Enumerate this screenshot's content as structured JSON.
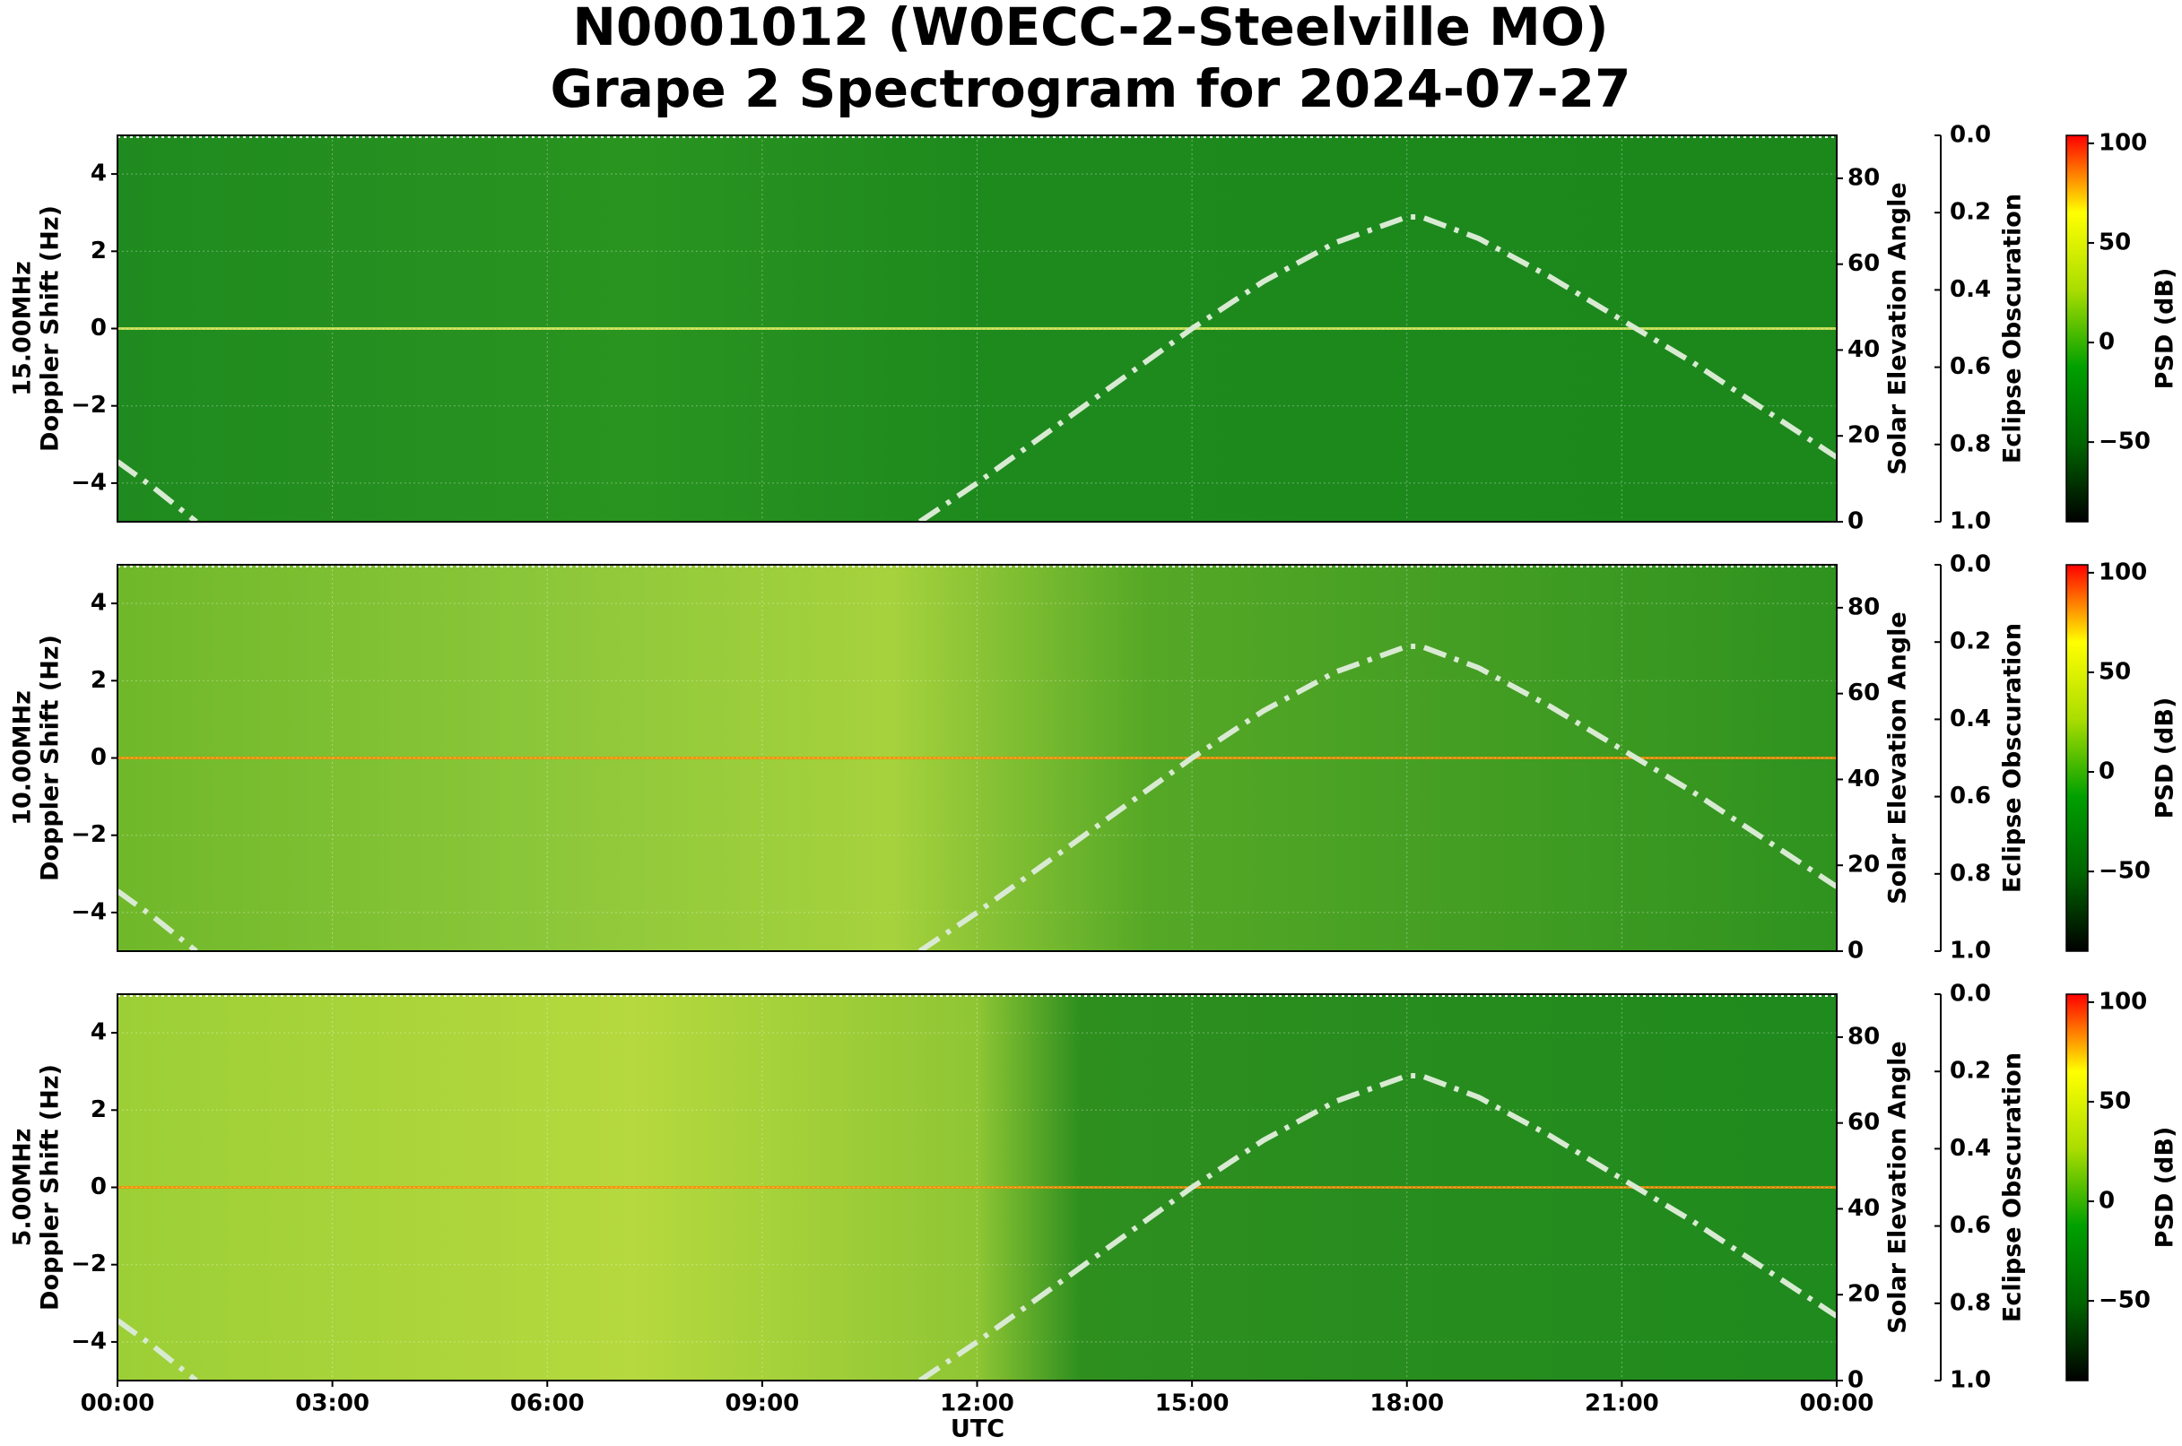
{
  "title": "N0001012 (W0ECC-2-Steelville MO)",
  "subtitle": "Grape 2 Spectrogram for 2024-07-27",
  "xlabel": "UTC",
  "xlim": [
    0,
    24
  ],
  "xticks": [
    {
      "value": 0,
      "label": "00:00"
    },
    {
      "value": 3,
      "label": "03:00"
    },
    {
      "value": 6,
      "label": "06:00"
    },
    {
      "value": 9,
      "label": "09:00"
    },
    {
      "value": 12,
      "label": "12:00"
    },
    {
      "value": 15,
      "label": "15:00"
    },
    {
      "value": 18,
      "label": "18:00"
    },
    {
      "value": 21,
      "label": "21:00"
    },
    {
      "value": 24,
      "label": "00:00"
    }
  ],
  "chart_data": [
    {
      "type": "spectrogram",
      "frequency_label": "15.00MHz",
      "ylabel": "Doppler Shift (Hz)",
      "ylim": [
        -5,
        5
      ],
      "yticks": [
        {
          "value": -4,
          "label": "−4"
        },
        {
          "value": -2,
          "label": "−2"
        },
        0,
        2,
        4
      ],
      "y2label": "Solar Elevation Angle",
      "y2lim": [
        0,
        90
      ],
      "y2ticks": [
        0,
        20,
        40,
        60,
        80
      ],
      "y3label": "Eclipse Obscuration",
      "y3lim": [
        1,
        0
      ],
      "y3ticks": [
        {
          "value": 0,
          "label": "0.0"
        },
        {
          "value": 0.2,
          "label": "0.2"
        },
        {
          "value": 0.4,
          "label": "0.4"
        },
        {
          "value": 0.6,
          "label": "0.6"
        },
        {
          "value": 0.8,
          "label": "0.8"
        },
        {
          "value": 1,
          "label": "1.0"
        }
      ],
      "colorbar_label": "PSD (dB)",
      "clim": [
        -90,
        104
      ],
      "cticks": [
        {
          "value": -50,
          "label": "−50"
        },
        0,
        50,
        100
      ],
      "colormap": [
        "#000000",
        "#006400",
        "#00a000",
        "#aadd00",
        "#ffff00",
        "#ff0000"
      ],
      "grid": true,
      "solar_elevation": {
        "axis": "y2",
        "color": "#d9ead3",
        "x": [
          0,
          0.5,
          1.1,
          6,
          11.2,
          12,
          13,
          14,
          15,
          16,
          17,
          18,
          18.2,
          19,
          20,
          21,
          22,
          23,
          24
        ],
        "values": [
          14,
          8,
          0,
          null,
          0,
          9,
          21,
          33,
          45,
          56,
          65,
          71,
          71,
          66,
          57,
          47,
          37,
          26,
          15
        ]
      }
    },
    {
      "type": "spectrogram",
      "frequency_label": "10.00MHz",
      "ylabel": "Doppler Shift (Hz)",
      "ylim": [
        -5,
        5
      ],
      "yticks": [
        {
          "value": -4,
          "label": "−4"
        },
        {
          "value": -2,
          "label": "−2"
        },
        0,
        2,
        4
      ],
      "y2label": "Solar Elevation Angle",
      "y2lim": [
        0,
        90
      ],
      "y2ticks": [
        0,
        20,
        40,
        60,
        80
      ],
      "y3label": "Eclipse Obscuration",
      "y3lim": [
        1,
        0
      ],
      "y3ticks": [
        {
          "value": 0,
          "label": "0.0"
        },
        {
          "value": 0.2,
          "label": "0.2"
        },
        {
          "value": 0.4,
          "label": "0.4"
        },
        {
          "value": 0.6,
          "label": "0.6"
        },
        {
          "value": 0.8,
          "label": "0.8"
        },
        {
          "value": 1,
          "label": "1.0"
        }
      ],
      "colorbar_label": "PSD (dB)",
      "clim": [
        -90,
        104
      ],
      "cticks": [
        {
          "value": -50,
          "label": "−50"
        },
        0,
        50,
        100
      ],
      "colormap": [
        "#000000",
        "#006400",
        "#00a000",
        "#aadd00",
        "#ffff00",
        "#ff0000"
      ],
      "grid": true,
      "solar_elevation": {
        "axis": "y2",
        "color": "#d9ead3",
        "x": [
          0,
          0.5,
          1.1,
          6,
          11.2,
          12,
          13,
          14,
          15,
          16,
          17,
          18,
          18.2,
          19,
          20,
          21,
          22,
          23,
          24
        ],
        "values": [
          14,
          8,
          0,
          null,
          0,
          9,
          21,
          33,
          45,
          56,
          65,
          71,
          71,
          66,
          57,
          47,
          37,
          26,
          15
        ]
      }
    },
    {
      "type": "spectrogram",
      "frequency_label": "5.00MHz",
      "ylabel": "Doppler Shift (Hz)",
      "ylim": [
        -5,
        5
      ],
      "yticks": [
        {
          "value": -4,
          "label": "−4"
        },
        {
          "value": -2,
          "label": "−2"
        },
        0,
        2,
        4
      ],
      "y2label": "Solar Elevation Angle",
      "y2lim": [
        0,
        90
      ],
      "y2ticks": [
        0,
        20,
        40,
        60,
        80
      ],
      "y3label": "Eclipse Obscuration",
      "y3lim": [
        1,
        0
      ],
      "y3ticks": [
        {
          "value": 0,
          "label": "0.0"
        },
        {
          "value": 0.2,
          "label": "0.2"
        },
        {
          "value": 0.4,
          "label": "0.4"
        },
        {
          "value": 0.6,
          "label": "0.6"
        },
        {
          "value": 0.8,
          "label": "0.8"
        },
        {
          "value": 1,
          "label": "1.0"
        }
      ],
      "colorbar_label": "PSD (dB)",
      "clim": [
        -90,
        104
      ],
      "cticks": [
        {
          "value": -50,
          "label": "−50"
        },
        0,
        50,
        100
      ],
      "colormap": [
        "#000000",
        "#006400",
        "#00a000",
        "#aadd00",
        "#ffff00",
        "#ff0000"
      ],
      "grid": true,
      "solar_elevation": {
        "axis": "y2",
        "color": "#d9ead3",
        "x": [
          0,
          0.5,
          1.1,
          6,
          11.2,
          12,
          13,
          14,
          15,
          16,
          17,
          18,
          18.2,
          19,
          20,
          21,
          22,
          23,
          24
        ],
        "values": [
          14,
          8,
          0,
          null,
          0,
          9,
          21,
          33,
          45,
          56,
          65,
          71,
          71,
          66,
          57,
          47,
          37,
          26,
          15
        ]
      }
    }
  ]
}
